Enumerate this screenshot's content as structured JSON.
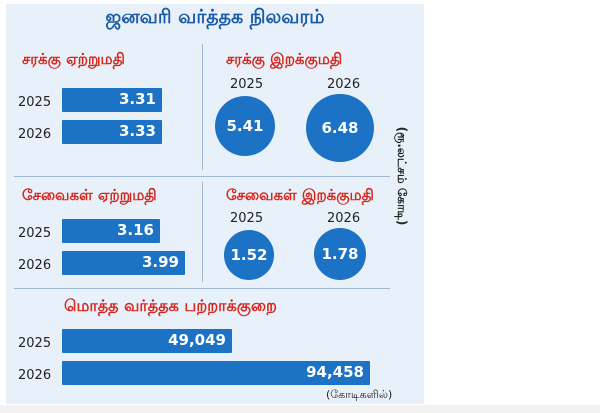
{
  "title": "ஜனவரி வர்த்தக நிலவரம்",
  "unit_note": "(ரூ.லட்சம் கோடி)",
  "trade_note": "(கோடிகளில்)",
  "colors": {
    "bar": "#1c72c4",
    "section_title": "#d7281f",
    "title": "#1a5aa6",
    "background": "#e8f1fa"
  },
  "chart_data": [
    {
      "type": "bar",
      "title": "சரக்கு ஏற்றுமதி",
      "categories": [
        "2025",
        "2026"
      ],
      "values": [
        3.31,
        3.33
      ]
    },
    {
      "type": "bubble",
      "title": "சரக்கு இறக்குமதி",
      "categories": [
        "2025",
        "2026"
      ],
      "values": [
        5.41,
        6.48
      ]
    },
    {
      "type": "bar",
      "title": "சேவைகள் ஏற்றுமதி",
      "categories": [
        "2025",
        "2026"
      ],
      "values": [
        3.16,
        3.99
      ]
    },
    {
      "type": "bubble",
      "title": "சேவைகள் இறக்குமதி",
      "categories": [
        "2025",
        "2026"
      ],
      "values": [
        1.52,
        1.78
      ]
    },
    {
      "type": "bar",
      "title": "மொத்த வர்த்தக பற்றாக்குறை",
      "categories": [
        "2025",
        "2026"
      ],
      "values": [
        "49,049",
        "94,458"
      ]
    }
  ]
}
